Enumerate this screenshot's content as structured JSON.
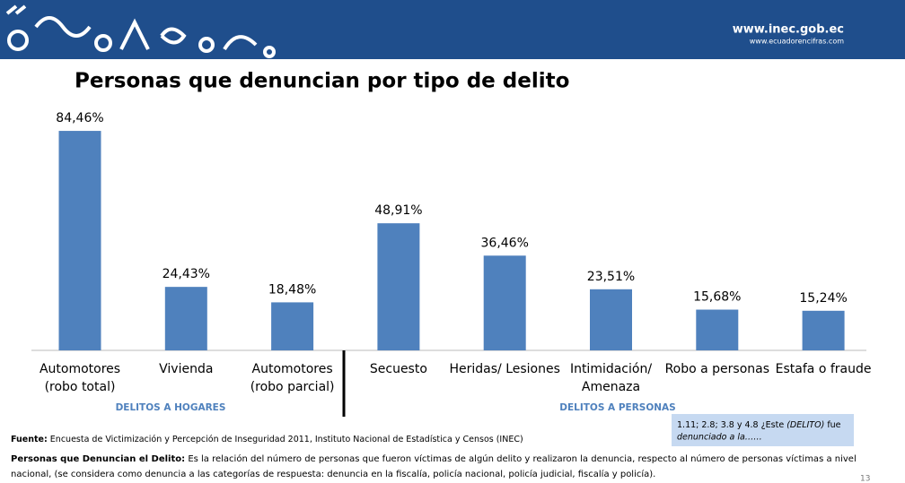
{
  "header": {
    "site": "www.inec.gob.ec",
    "subsite": "www.ecuadorencifras.com"
  },
  "chart_data": {
    "type": "bar",
    "title": "Personas que denuncian por tipo de delito",
    "categories": [
      [
        "Automotores",
        "(robo total)"
      ],
      [
        "Vivienda"
      ],
      [
        "Automotores",
        "(robo parcial)"
      ],
      [
        "Secuesto"
      ],
      [
        "Heridas/ Lesiones"
      ],
      [
        "Intimidación/",
        "Amenaza"
      ],
      [
        "Robo a personas"
      ],
      [
        "Estafa o fraude"
      ]
    ],
    "values": [
      84.46,
      24.43,
      18.48,
      48.91,
      36.46,
      23.51,
      15.68,
      15.24
    ],
    "value_labels": [
      "84,46%",
      "24,43%",
      "18,48%",
      "48,91%",
      "36,46%",
      "23,51%",
      "15,68%",
      "15,24%"
    ],
    "color": "#4f81bd",
    "groups": [
      "DELITOS A HOGARES",
      "DELITOS A PERSONAS"
    ]
  },
  "note": [
    "1.11; 2.8; 3.8 y 4.8 ¿Este ",
    "(DELITO)",
    " fue",
    "denunciado a la……"
  ],
  "source": {
    "label": "Fuente:",
    "text": " Encuesta de Victimización y Percepción de Inseguridad 2011, Instituto Nacional de Estadística y Censos (INEC)"
  },
  "definition": {
    "label": "Personas que Denuncian el Delito:",
    "lines": [
      " Es la relación del número de personas que fueron víctimas de algún delito y realizaron la denuncia, respecto al número de personas víctimas a nivel",
      "nacional, (se considera como denuncia a las categorías de respuesta: denuncia en la fiscalía, policía nacional, policía judicial, fiscalía y policía)."
    ]
  },
  "page_number": "13"
}
